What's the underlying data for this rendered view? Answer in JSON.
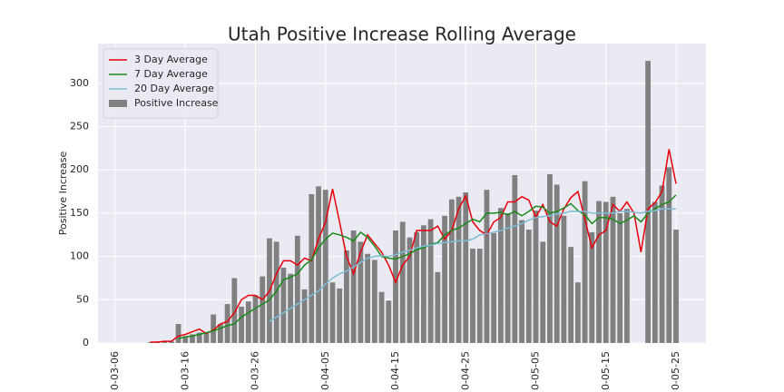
{
  "chart_data": {
    "type": "bar",
    "title": "Utah Positive Increase Rolling Average",
    "y_label": "Positive Increase",
    "categories": [
      "0-03-06",
      null,
      null,
      null,
      null,
      null,
      null,
      null,
      null,
      null,
      "0-03-16",
      null,
      null,
      null,
      null,
      null,
      null,
      null,
      null,
      null,
      "0-03-26",
      null,
      null,
      null,
      null,
      null,
      null,
      null,
      null,
      null,
      "0-04-05",
      null,
      null,
      null,
      null,
      null,
      null,
      null,
      null,
      null,
      "0-04-15",
      null,
      null,
      null,
      null,
      null,
      null,
      null,
      null,
      null,
      "0-04-25",
      null,
      null,
      null,
      null,
      null,
      null,
      null,
      null,
      null,
      "0-05-05",
      null,
      null,
      null,
      null,
      null,
      null,
      null,
      null,
      null,
      "0-05-15",
      null,
      null,
      null,
      null,
      null,
      null,
      null,
      null,
      null,
      "0-05-25"
    ],
    "series": [
      {
        "name": "3 Day Average",
        "type": "line",
        "color": "#e8000b",
        "values": [
          null,
          null,
          null,
          null,
          null,
          1,
          1,
          2,
          2,
          8,
          10,
          13,
          16,
          11,
          15,
          22,
          25,
          35,
          50,
          55,
          55,
          50,
          60,
          80,
          95,
          95,
          90,
          98,
          95,
          120,
          140,
          178,
          140,
          100,
          80,
          105,
          125,
          115,
          105,
          90,
          70,
          90,
          100,
          130,
          130,
          130,
          135,
          120,
          130,
          155,
          170,
          140,
          130,
          125,
          140,
          145,
          163,
          163,
          169,
          165,
          145,
          160,
          140,
          135,
          155,
          168,
          175,
          143,
          110,
          125,
          130,
          160,
          152,
          163,
          150,
          105,
          155,
          162,
          175,
          224,
          184
        ]
      },
      {
        "name": "7 Day Average",
        "type": "line",
        "color": "#1a8a1a",
        "values": [
          null,
          null,
          null,
          null,
          null,
          null,
          null,
          null,
          null,
          5,
          7,
          8,
          10,
          12,
          14,
          17,
          20,
          22,
          30,
          35,
          40,
          45,
          50,
          60,
          73,
          76,
          80,
          90,
          96,
          110,
          120,
          127,
          125,
          122,
          118,
          128,
          122,
          112,
          100,
          98,
          97,
          100,
          103,
          108,
          110,
          114,
          116,
          125,
          130,
          133,
          138,
          143,
          140,
          150,
          150,
          151,
          148,
          152,
          147,
          152,
          158,
          157,
          150,
          152,
          156,
          161,
          153,
          148,
          138,
          145,
          145,
          143,
          138,
          142,
          147,
          140,
          150,
          155,
          160,
          163,
          171
        ]
      },
      {
        "name": "20 Day Average",
        "type": "line",
        "color": "#7fbcd6",
        "values": [
          null,
          null,
          null,
          null,
          null,
          null,
          null,
          null,
          null,
          null,
          null,
          null,
          null,
          null,
          null,
          null,
          null,
          null,
          null,
          null,
          null,
          null,
          25,
          30,
          35,
          40,
          45,
          50,
          55,
          60,
          68,
          75,
          80,
          83,
          88,
          93,
          98,
          100,
          101,
          100,
          102,
          105,
          107,
          110,
          112,
          113,
          115,
          116,
          117,
          118,
          118,
          120,
          125,
          126,
          128,
          130,
          133,
          135,
          138,
          142,
          145,
          146,
          147,
          149,
          150,
          152,
          152,
          152,
          150,
          150,
          150,
          150,
          152,
          152,
          151,
          150,
          152,
          153,
          155,
          155,
          155
        ]
      },
      {
        "name": "Positive Increase",
        "type": "bar",
        "color": "#808080",
        "values": [
          null,
          null,
          null,
          null,
          null,
          1,
          1,
          2,
          2,
          22,
          8,
          10,
          12,
          11,
          33,
          22,
          45,
          75,
          42,
          48,
          55,
          77,
          121,
          117,
          87,
          80,
          124,
          62,
          172,
          181,
          177,
          70,
          63,
          107,
          130,
          117,
          103,
          96,
          59,
          49,
          130,
          140,
          122,
          128,
          136,
          143,
          82,
          147,
          166,
          169,
          174,
          109,
          109,
          177,
          127,
          156,
          150,
          194,
          142,
          131,
          153,
          117,
          195,
          183,
          147,
          111,
          70,
          187,
          128,
          164,
          163,
          169,
          150,
          155,
          null,
          null,
          326,
          163,
          182,
          203,
          131
        ]
      }
    ],
    "ylim": [
      0,
      346
    ],
    "yticks": [
      0,
      50,
      100,
      150,
      200,
      250,
      300
    ],
    "grid": true,
    "legend": "upper left"
  }
}
